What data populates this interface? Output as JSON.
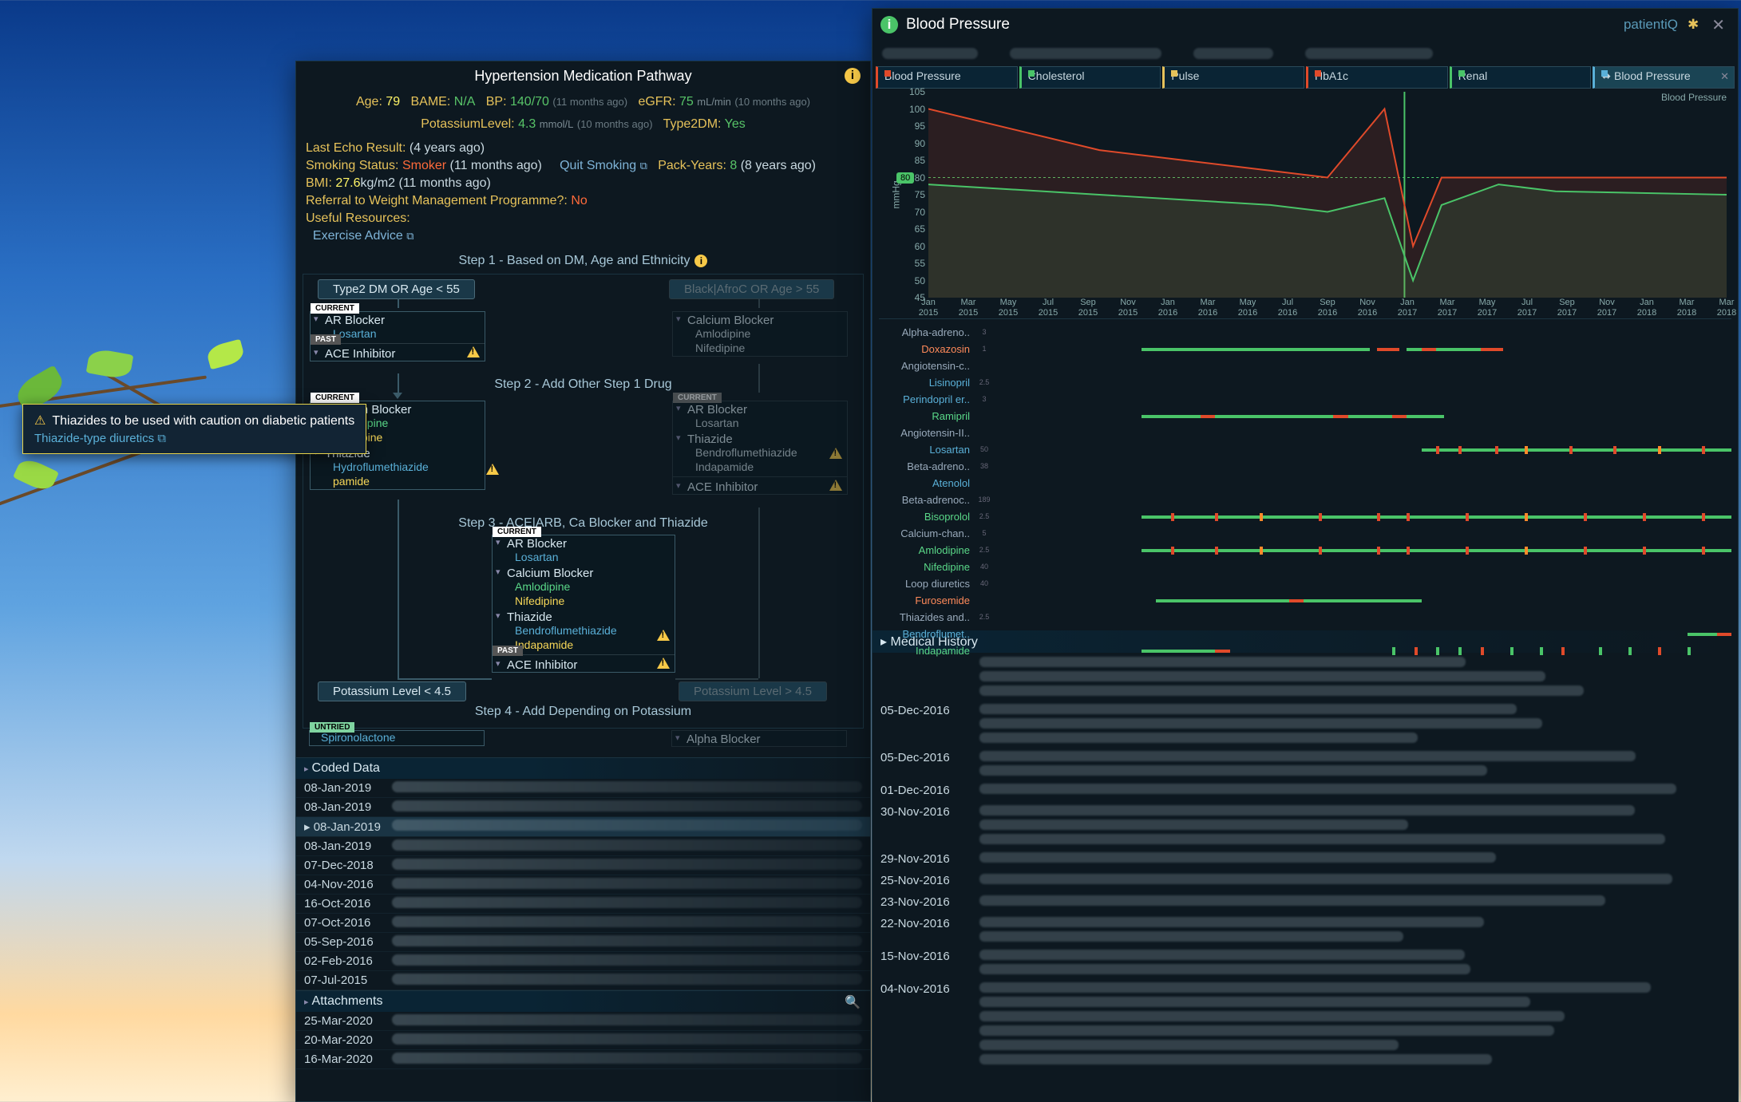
{
  "colors": {
    "bg": "#0d1820",
    "accent": "#f7c948",
    "good": "#4ac468",
    "warn": "#e6c25a",
    "bad": "#e04a2a",
    "link": "#5ab0d8",
    "dim": "#5a6a72"
  },
  "tooltip": {
    "text": "Thiazides to be used with caution on diabetic patients",
    "link": "Thiazide-type diuretics"
  },
  "pathway": {
    "title": "Hypertension Medication Pathway",
    "patient": {
      "age": {
        "label": "Age:",
        "value": "79"
      },
      "bame": {
        "label": "BAME:",
        "value": "N/A"
      },
      "bp": {
        "label": "BP:",
        "value": "140/70",
        "ago": "(11 months ago)"
      },
      "egfr": {
        "label": "eGFR:",
        "value": "75",
        "unit": "mL/min",
        "ago": "(10 months ago)"
      },
      "potassium": {
        "label": "PotassiumLevel:",
        "value": "4.3",
        "unit": "mmol/L",
        "ago": "(10 months ago)"
      },
      "type2dm": {
        "label": "Type2DM:",
        "value": "Yes"
      }
    },
    "status": {
      "echo": {
        "k": "Last Echo Result:",
        "ago": "(4 years ago)"
      },
      "smoke": {
        "k": "Smoking Status:",
        "v": "Smoker",
        "ago": "(11 months ago)"
      },
      "quit": {
        "k": "Quit Smoking"
      },
      "packYears": {
        "k": "Pack-Years:",
        "v": "8",
        "ago": "(8 years ago)"
      },
      "bmi": {
        "k": "BMI:",
        "v": "27.6",
        "unit": "kg/m2",
        "ago": "(11 months ago)"
      },
      "referral": {
        "k": "Referral to Weight Management Programme?:",
        "v": "No"
      },
      "resources": {
        "k": "Useful Resources:"
      },
      "exercise": {
        "k": "Exercise Advice"
      }
    },
    "steps": {
      "s1": "Step 1 - Based on DM, Age and Ethnicity",
      "s2": "Step 2 - Add Other Step 1 Drug",
      "s3": "Step 3 - ACE|ARB, Ca Blocker and Thiazide",
      "s4": "Step 4 - Add Depending on Potassium",
      "left1": "Type2 DM OR Age < 55",
      "right1": "Black|AfroC OR Age > 55",
      "kleft": "Potassium Level < 4.5",
      "kright": "Potassium Level > 4.5"
    },
    "tags": {
      "current": "CURRENT",
      "past": "PAST",
      "untried": "UNTRIED"
    },
    "cats": {
      "arb": "AR Blocker",
      "cab": "Calcium Blocker",
      "thia": "Thiazide",
      "ace": "ACE Inhibitor",
      "alpha": "Alpha Blocker"
    },
    "drugs": {
      "losartan": "Losartan",
      "amlodipine": "Amlodipine",
      "nifedipine": "Nifedipine",
      "bendro": "Bendroflumethiazide",
      "indapamide": "Indapamide",
      "spiro": "Spironolactone",
      "hydroflu": "Hydroflumethiazide",
      "pamide": "pamide"
    },
    "codedHdr": "Coded Data",
    "coded": [
      "08-Jan-2019",
      "08-Jan-2019",
      "08-Jan-2019",
      "08-Jan-2019",
      "07-Dec-2018",
      "04-Nov-2016",
      "16-Oct-2016",
      "07-Oct-2016",
      "05-Sep-2016",
      "02-Feb-2016",
      "07-Jul-2015"
    ],
    "attachHdr": "Attachments",
    "attach": [
      "25-Mar-2020",
      "20-Mar-2020",
      "16-Mar-2020"
    ]
  },
  "bp": {
    "title": "Blood Pressure",
    "brand": "patientiQ",
    "tabs": [
      {
        "label": "Blood Pressure",
        "color": "#e04a2a"
      },
      {
        "label": "Cholesterol",
        "color": "#4ac468"
      },
      {
        "label": "Pulse",
        "color": "#e6c25a"
      },
      {
        "label": "HbA1c",
        "color": "#e04a2a"
      },
      {
        "label": "Renal",
        "color": "#4ac468"
      },
      {
        "label": "Blood Pressure",
        "color": "#5ab0d8",
        "active": true,
        "closable": true
      }
    ],
    "chart": {
      "rightLbl": "Blood Pressure",
      "yUnit": "mmHg",
      "ymin": 45,
      "ymax": 105,
      "ystep": 5,
      "yBadge": 80,
      "series": [
        {
          "name": "systolic",
          "color": "#e04a2a",
          "fill": "rgba(224,74,42,0.14)",
          "points": [
            [
              0,
              100
            ],
            [
              6,
              88
            ],
            [
              12,
              82
            ],
            [
              14,
              80
            ],
            [
              16,
              100
            ],
            [
              17,
              60
            ],
            [
              18,
              80
            ],
            [
              20,
              80
            ],
            [
              22,
              80
            ],
            [
              28,
              80
            ]
          ]
        },
        {
          "name": "diastolic",
          "color": "#4ac468",
          "fill": "rgba(74,196,104,0.12)",
          "points": [
            [
              0,
              78
            ],
            [
              6,
              75
            ],
            [
              12,
              72
            ],
            [
              14,
              70
            ],
            [
              16,
              74
            ],
            [
              17,
              50
            ],
            [
              18,
              72
            ],
            [
              20,
              78
            ],
            [
              22,
              76
            ],
            [
              28,
              75
            ]
          ]
        }
      ],
      "vmark": {
        "x": 16.7,
        "color": "#4ac468"
      },
      "xLabels": [
        "Jan 2015",
        "Mar 2015",
        "May 2015",
        "Jul 2015",
        "Sep 2015",
        "Nov 2015",
        "Jan 2016",
        "Mar 2016",
        "May 2016",
        "Jul 2016",
        "Sep 2016",
        "Nov 2016",
        "Jan 2017",
        "Mar 2017",
        "May 2017",
        "Jul 2017",
        "Sep 2017",
        "Nov 2017",
        "Jan 2018",
        "Mar 2018",
        "Mar 2018"
      ],
      "xMax": 28
    },
    "meds": [
      {
        "cat": "Alpha-adreno..",
        "scale": "3"
      },
      {
        "name": "Doxazosin",
        "cls": "r",
        "scale": "1",
        "segs": [
          [
            20,
            51,
            "g"
          ],
          [
            52,
            55,
            "r"
          ],
          [
            56,
            58,
            "g"
          ],
          [
            58,
            60,
            "r"
          ],
          [
            60,
            66,
            "g"
          ],
          [
            66,
            69,
            "r"
          ]
        ]
      },
      {
        "cat": "Angiotensin-c..",
        "scale": ""
      },
      {
        "name": "Lisinopril",
        "cls": "b",
        "scale": "2.5",
        "segs": []
      },
      {
        "name": "Perindopril er..",
        "cls": "b",
        "scale": "3",
        "segs": []
      },
      {
        "name": "Ramipril",
        "cls": "g",
        "scale": "",
        "segs": [
          [
            20,
            28,
            "g"
          ],
          [
            28,
            30,
            "r"
          ],
          [
            30,
            46,
            "g"
          ],
          [
            46,
            48,
            "r"
          ],
          [
            48,
            54,
            "g"
          ],
          [
            54,
            56,
            "r"
          ],
          [
            56,
            61,
            "g"
          ]
        ]
      },
      {
        "cat": "Angiotensin-II..",
        "scale": ""
      },
      {
        "name": "Losartan",
        "cls": "b",
        "scale": "50",
        "segs": [
          [
            58,
            100,
            "g"
          ]
        ],
        "dots": [
          [
            60,
            "r"
          ],
          [
            63,
            "r"
          ],
          [
            68,
            "r"
          ],
          [
            72,
            "o"
          ],
          [
            78,
            "r"
          ],
          [
            84,
            "r"
          ],
          [
            90,
            "o"
          ],
          [
            96,
            "r"
          ]
        ]
      },
      {
        "cat": "Beta-adreno..",
        "scale": "38"
      },
      {
        "name": "Atenolol",
        "cls": "b",
        "scale": "",
        "segs": []
      },
      {
        "cat": "Beta-adrenoc..",
        "scale": "189"
      },
      {
        "name": "Bisoprolol",
        "cls": "g",
        "scale": "2.5",
        "segs": [
          [
            20,
            100,
            "g"
          ]
        ],
        "dots": [
          [
            24,
            "r"
          ],
          [
            30,
            "r"
          ],
          [
            36,
            "o"
          ],
          [
            44,
            "r"
          ],
          [
            52,
            "r"
          ],
          [
            56,
            "r"
          ],
          [
            64,
            "r"
          ],
          [
            72,
            "o"
          ],
          [
            80,
            "r"
          ],
          [
            88,
            "r"
          ],
          [
            96,
            "r"
          ]
        ]
      },
      {
        "cat": "Calcium-chan..",
        "scale": "5"
      },
      {
        "name": "Amlodipine",
        "cls": "g",
        "scale": "2.5",
        "segs": [
          [
            20,
            100,
            "g"
          ]
        ],
        "dots": [
          [
            24,
            "r"
          ],
          [
            30,
            "r"
          ],
          [
            36,
            "o"
          ],
          [
            44,
            "r"
          ],
          [
            52,
            "r"
          ],
          [
            56,
            "r"
          ],
          [
            64,
            "r"
          ],
          [
            72,
            "o"
          ],
          [
            80,
            "r"
          ],
          [
            88,
            "r"
          ],
          [
            96,
            "r"
          ]
        ]
      },
      {
        "name": "Nifedipine",
        "cls": "g",
        "scale": "40",
        "segs": []
      },
      {
        "cat": "Loop diuretics",
        "scale": "40"
      },
      {
        "name": "Furosemide",
        "cls": "r",
        "scale": "",
        "segs": [
          [
            22,
            40,
            "g"
          ],
          [
            40,
            42,
            "r"
          ],
          [
            42,
            58,
            "g"
          ]
        ]
      },
      {
        "cat": "Thiazides and..",
        "scale": "2.5"
      },
      {
        "name": "Bendroflumet..",
        "cls": "b",
        "scale": "",
        "segs": [
          [
            94,
            98,
            "g"
          ],
          [
            98,
            100,
            "r"
          ]
        ]
      },
      {
        "name": "Indapamide",
        "cls": "g",
        "scale": "",
        "segs": [
          [
            20,
            30,
            "g"
          ],
          [
            30,
            32,
            "r"
          ]
        ],
        "dots": [
          [
            54,
            "g"
          ],
          [
            57,
            "r"
          ],
          [
            60,
            "g"
          ],
          [
            63,
            "g"
          ],
          [
            66,
            "r"
          ],
          [
            70,
            "g"
          ],
          [
            74,
            "g"
          ],
          [
            77,
            "r"
          ],
          [
            82,
            "g"
          ],
          [
            86,
            "g"
          ],
          [
            90,
            "r"
          ],
          [
            94,
            "g"
          ]
        ]
      }
    ],
    "medHistHdr": "Medical History",
    "history": [
      {
        "d": "",
        "lines": 3
      },
      {
        "d": "05-Dec-2016",
        "lines": 3
      },
      {
        "d": "05-Dec-2016",
        "lines": 2
      },
      {
        "d": "01-Dec-2016",
        "lines": 1
      },
      {
        "d": "30-Nov-2016",
        "lines": 3
      },
      {
        "d": "29-Nov-2016",
        "lines": 1
      },
      {
        "d": "25-Nov-2016",
        "lines": 1
      },
      {
        "d": "23-Nov-2016",
        "lines": 1
      },
      {
        "d": "22-Nov-2016",
        "lines": 2
      },
      {
        "d": "15-Nov-2016",
        "lines": 2
      },
      {
        "d": "04-Nov-2016",
        "lines": 6
      }
    ]
  }
}
